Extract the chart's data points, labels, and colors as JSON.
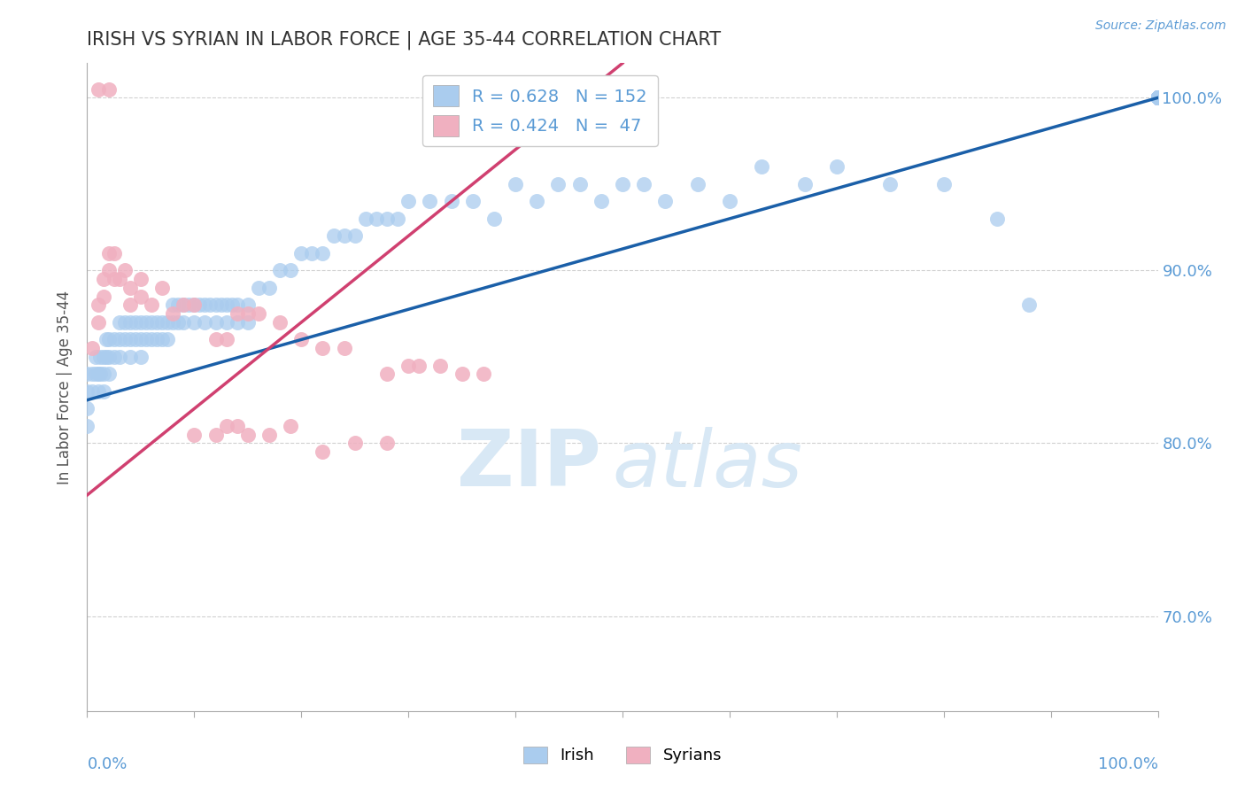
{
  "title": "IRISH VS SYRIAN IN LABOR FORCE | AGE 35-44 CORRELATION CHART",
  "source_text": "Source: ZipAtlas.com",
  "ylabel": "In Labor Force | Age 35-44",
  "legend_irish_R": "R = 0.628",
  "legend_irish_N": "N = 152",
  "legend_syrian_R": "R = 0.424",
  "legend_syrian_N": "N =  47",
  "irish_color": "#aaccee",
  "irish_edge_color": "#aaccee",
  "irish_line_color": "#1a5fa8",
  "syrian_color": "#f0b0c0",
  "syrian_edge_color": "#f0b0c0",
  "syrian_line_color": "#d04070",
  "background_color": "#ffffff",
  "grid_color": "#cccccc",
  "title_color": "#333333",
  "axis_label_color": "#5b9bd5",
  "watermark_color": "#d8e8f5",
  "right_ytick_labels": [
    "70.0%",
    "80.0%",
    "90.0%",
    "100.0%"
  ],
  "right_ytick_values": [
    0.7,
    0.8,
    0.9,
    1.0
  ],
  "xlim": [
    0.0,
    1.0
  ],
  "ylim": [
    0.645,
    1.02
  ],
  "irish_x": [
    0.0,
    0.0,
    0.0,
    0.0,
    0.005,
    0.005,
    0.008,
    0.008,
    0.01,
    0.01,
    0.012,
    0.012,
    0.015,
    0.015,
    0.015,
    0.018,
    0.018,
    0.02,
    0.02,
    0.02,
    0.025,
    0.025,
    0.03,
    0.03,
    0.03,
    0.035,
    0.035,
    0.04,
    0.04,
    0.04,
    0.045,
    0.045,
    0.05,
    0.05,
    0.05,
    0.055,
    0.055,
    0.06,
    0.06,
    0.065,
    0.065,
    0.07,
    0.07,
    0.075,
    0.075,
    0.08,
    0.08,
    0.085,
    0.085,
    0.09,
    0.09,
    0.095,
    0.1,
    0.1,
    0.105,
    0.11,
    0.11,
    0.115,
    0.12,
    0.12,
    0.125,
    0.13,
    0.13,
    0.135,
    0.14,
    0.14,
    0.15,
    0.15,
    0.16,
    0.17,
    0.18,
    0.19,
    0.2,
    0.21,
    0.22,
    0.23,
    0.24,
    0.25,
    0.26,
    0.27,
    0.28,
    0.29,
    0.3,
    0.32,
    0.34,
    0.36,
    0.38,
    0.4,
    0.42,
    0.44,
    0.46,
    0.48,
    0.5,
    0.52,
    0.54,
    0.57,
    0.6,
    0.63,
    0.67,
    0.7,
    0.75,
    0.8,
    0.85,
    0.88,
    1.0,
    1.0,
    1.0,
    1.0,
    1.0,
    1.0,
    1.0,
    1.0,
    1.0,
    1.0,
    1.0,
    1.0,
    1.0,
    1.0,
    1.0,
    1.0,
    1.0,
    1.0,
    1.0,
    1.0,
    1.0,
    1.0,
    1.0,
    1.0,
    1.0,
    1.0,
    1.0,
    1.0,
    1.0,
    1.0,
    1.0,
    1.0,
    1.0,
    1.0,
    1.0,
    1.0,
    1.0,
    1.0,
    1.0,
    1.0,
    1.0,
    1.0,
    1.0,
    1.0,
    1.0,
    1.0,
    1.0,
    1.0,
    1.0
  ],
  "irish_y": [
    0.84,
    0.83,
    0.82,
    0.81,
    0.84,
    0.83,
    0.85,
    0.84,
    0.84,
    0.83,
    0.85,
    0.84,
    0.85,
    0.84,
    0.83,
    0.86,
    0.85,
    0.86,
    0.85,
    0.84,
    0.86,
    0.85,
    0.87,
    0.86,
    0.85,
    0.87,
    0.86,
    0.87,
    0.86,
    0.85,
    0.87,
    0.86,
    0.87,
    0.86,
    0.85,
    0.87,
    0.86,
    0.87,
    0.86,
    0.87,
    0.86,
    0.87,
    0.86,
    0.87,
    0.86,
    0.88,
    0.87,
    0.88,
    0.87,
    0.88,
    0.87,
    0.88,
    0.88,
    0.87,
    0.88,
    0.88,
    0.87,
    0.88,
    0.88,
    0.87,
    0.88,
    0.88,
    0.87,
    0.88,
    0.88,
    0.87,
    0.88,
    0.87,
    0.89,
    0.89,
    0.9,
    0.9,
    0.91,
    0.91,
    0.91,
    0.92,
    0.92,
    0.92,
    0.93,
    0.93,
    0.93,
    0.93,
    0.94,
    0.94,
    0.94,
    0.94,
    0.93,
    0.95,
    0.94,
    0.95,
    0.95,
    0.94,
    0.95,
    0.95,
    0.94,
    0.95,
    0.94,
    0.96,
    0.95,
    0.96,
    0.95,
    0.95,
    0.93,
    0.88,
    1.0,
    1.0,
    1.0,
    1.0,
    1.0,
    1.0,
    1.0,
    1.0,
    1.0,
    1.0,
    1.0,
    1.0,
    1.0,
    1.0,
    1.0,
    1.0,
    1.0,
    1.0,
    1.0,
    1.0,
    1.0,
    1.0,
    1.0,
    1.0,
    1.0,
    1.0,
    1.0,
    1.0,
    1.0,
    1.0,
    1.0,
    1.0,
    1.0,
    1.0,
    1.0,
    1.0,
    1.0,
    1.0,
    1.0,
    1.0,
    1.0,
    1.0,
    1.0,
    1.0,
    1.0,
    1.0,
    1.0,
    1.0,
    1.0
  ],
  "syrian_x": [
    0.005,
    0.01,
    0.01,
    0.015,
    0.015,
    0.02,
    0.02,
    0.025,
    0.025,
    0.03,
    0.035,
    0.04,
    0.04,
    0.05,
    0.05,
    0.06,
    0.07,
    0.08,
    0.09,
    0.1,
    0.12,
    0.13,
    0.14,
    0.15,
    0.16,
    0.18,
    0.2,
    0.22,
    0.24,
    0.28,
    0.3,
    0.31,
    0.33,
    0.35,
    0.37,
    0.1,
    0.12,
    0.14,
    0.13,
    0.15,
    0.17,
    0.19,
    0.22,
    0.25,
    0.28,
    0.01,
    0.02
  ],
  "syrian_y": [
    0.855,
    0.88,
    0.87,
    0.895,
    0.885,
    0.91,
    0.9,
    0.91,
    0.895,
    0.895,
    0.9,
    0.89,
    0.88,
    0.895,
    0.885,
    0.88,
    0.89,
    0.875,
    0.88,
    0.88,
    0.86,
    0.86,
    0.875,
    0.875,
    0.875,
    0.87,
    0.86,
    0.855,
    0.855,
    0.84,
    0.845,
    0.845,
    0.845,
    0.84,
    0.84,
    0.805,
    0.805,
    0.81,
    0.81,
    0.805,
    0.805,
    0.81,
    0.795,
    0.8,
    0.8,
    1.005,
    1.005
  ],
  "irish_trendline_x": [
    0.0,
    1.0
  ],
  "irish_trendline_y": [
    0.825,
    1.0
  ],
  "syrian_trendline_x": [
    0.0,
    0.5
  ],
  "syrian_trendline_y": [
    0.77,
    1.02
  ]
}
